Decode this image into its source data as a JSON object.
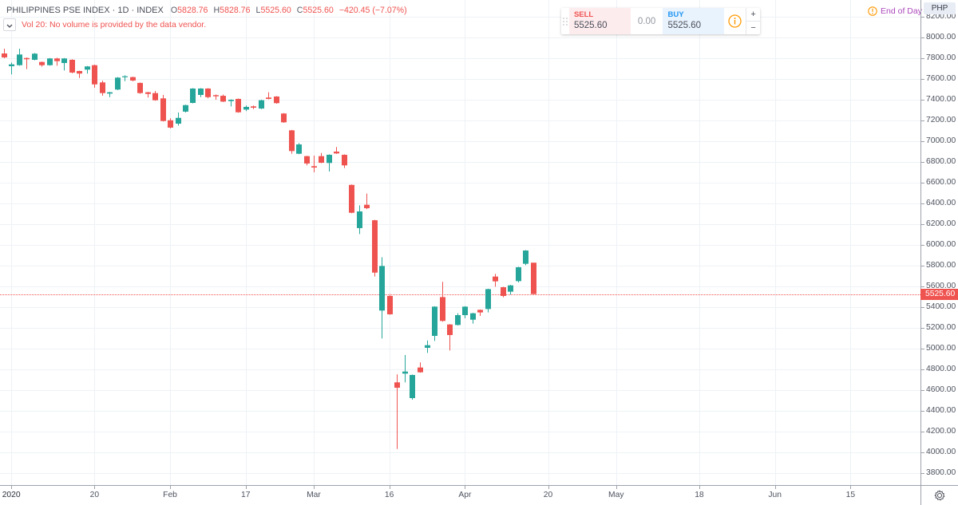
{
  "legend": {
    "symbol_title": "PHILIPPINES PSE INDEX · 1D · INDEX",
    "open_label": "O",
    "open": "5828.76",
    "high_label": "H",
    "high": "5828.76",
    "low_label": "L",
    "low": "5525.60",
    "close_label": "C",
    "close": "5525.60",
    "change": "−420.45 (−7.07%)"
  },
  "volume_indicator": {
    "collapse_icon": "chevron-down-icon",
    "notice": "Vol 20: No volume is provided by the data vendor."
  },
  "trade_widget": {
    "sell_label": "SELL",
    "sell_price": "5525.60",
    "spread": "0.00",
    "buy_label": "BUY",
    "buy_price": "5525.60",
    "info_icon": "info-icon",
    "plus": "+",
    "minus": "−"
  },
  "data_status": {
    "icon": "warning-circle-icon",
    "label": "End of Day"
  },
  "price_axis": {
    "currency": "PHP",
    "last_price_label": "5525.60",
    "tick_labels": [
      "3800.00",
      "4000.00",
      "4200.00",
      "4400.00",
      "4600.00",
      "4800.00",
      "5000.00",
      "5200.00",
      "5400.00",
      "5600.00",
      "5800.00",
      "6000.00",
      "6200.00",
      "6400.00",
      "6600.00",
      "6800.00",
      "7000.00",
      "7200.00",
      "7400.00",
      "7600.00",
      "7800.00",
      "8000.00",
      "8200.00"
    ]
  },
  "settings": {
    "icon": "gear-icon"
  },
  "colors": {
    "up": "#26a69a",
    "down": "#ef5350",
    "grid": "#eef2f6",
    "last_price_line": "#ef5350",
    "status_orange": "#ff9800",
    "status_purple": "#ab47bc",
    "buy_blue": "#2196f3",
    "sell_red": "#ef5350"
  },
  "chart_data": {
    "type": "candlestick",
    "title": "PHILIPPINES PSE INDEX · 1D · INDEX",
    "xlabel": "",
    "ylabel": "PHP",
    "ylim": [
      3700,
      8250
    ],
    "yticks": [
      3800,
      4000,
      4200,
      4400,
      4600,
      4800,
      5000,
      5200,
      5400,
      5600,
      5800,
      6000,
      6200,
      6400,
      6600,
      6800,
      7000,
      7200,
      7400,
      7600,
      7800,
      8000,
      8200
    ],
    "grid": true,
    "legend_position": "top-left",
    "last_price": 5525.6,
    "xticks": [
      {
        "label": "2020",
        "index": 1,
        "year": true
      },
      {
        "label": "20",
        "index": 12
      },
      {
        "label": "Feb",
        "index": 22
      },
      {
        "label": "17",
        "index": 32
      },
      {
        "label": "Mar",
        "index": 41
      },
      {
        "label": "16",
        "index": 51
      },
      {
        "label": "Apr",
        "index": 61
      },
      {
        "label": "20",
        "index": 72
      },
      {
        "label": "May",
        "index": 81
      },
      {
        "label": "18",
        "index": 92
      },
      {
        "label": "Jun",
        "index": 102
      },
      {
        "label": "15",
        "index": 112
      }
    ],
    "categories": [
      "2019-12-27",
      "2020-01-02",
      "2020-01-03",
      "2020-01-06",
      "2020-01-07",
      "2020-01-08",
      "2020-01-09",
      "2020-01-10",
      "2020-01-14",
      "2020-01-15",
      "2020-01-16",
      "2020-01-17",
      "2020-01-20",
      "2020-01-21",
      "2020-01-22",
      "2020-01-23",
      "2020-01-24",
      "2020-01-27",
      "2020-01-28",
      "2020-01-29",
      "2020-01-30",
      "2020-01-31",
      "2020-02-03",
      "2020-02-04",
      "2020-02-05",
      "2020-02-06",
      "2020-02-07",
      "2020-02-10",
      "2020-02-11",
      "2020-02-12",
      "2020-02-13",
      "2020-02-14",
      "2020-02-17",
      "2020-02-18",
      "2020-02-19",
      "2020-02-20",
      "2020-02-21",
      "2020-02-24",
      "2020-02-26",
      "2020-02-27",
      "2020-02-28",
      "2020-03-02",
      "2020-03-03",
      "2020-03-04",
      "2020-03-05",
      "2020-03-06",
      "2020-03-09",
      "2020-03-10",
      "2020-03-11",
      "2020-03-12",
      "2020-03-13",
      "2020-03-16",
      "2020-03-19",
      "2020-03-20",
      "2020-03-23",
      "2020-03-24",
      "2020-03-25",
      "2020-03-26",
      "2020-03-27",
      "2020-03-30",
      "2020-03-31",
      "2020-04-01",
      "2020-04-02",
      "2020-04-03",
      "2020-04-06",
      "2020-04-07",
      "2020-04-08",
      "2020-04-13",
      "2020-04-14",
      "2020-04-15",
      "2020-04-16"
    ],
    "series": [
      {
        "name": "open",
        "values": [
          7846,
          7723,
          7733,
          7802,
          7785,
          7764,
          7733,
          7798,
          7754,
          7785,
          7677,
          7690,
          7733,
          7567,
          7459,
          7498,
          7618,
          7618,
          7562,
          7472,
          7464,
          7413,
          7202,
          7169,
          7285,
          7369,
          7446,
          7508,
          7444,
          7438,
          7387,
          7408,
          7305,
          7336,
          7315,
          7421,
          7431,
          7267,
          7105,
          6879,
          6856,
          6759,
          6856,
          6790,
          6900,
          6869,
          6579,
          6162,
          6387,
          6238,
          5367,
          5508,
          4675,
          4759,
          4523,
          4818,
          5008,
          5123,
          5497,
          5233,
          5228,
          5323,
          5279,
          5374,
          5382,
          5695,
          5592,
          5549,
          5651,
          5818,
          5828.76
        ]
      },
      {
        "name": "high",
        "values": [
          7892,
          7759,
          7892,
          7808,
          7850,
          7768,
          7802,
          7805,
          7802,
          7790,
          7680,
          7725,
          7738,
          7585,
          7476,
          7618,
          7636,
          7622,
          7566,
          7476,
          7485,
          7446,
          7221,
          7277,
          7352,
          7512,
          7512,
          7512,
          7450,
          7450,
          7404,
          7412,
          7344,
          7344,
          7400,
          7472,
          7435,
          7271,
          7109,
          6982,
          6860,
          6862,
          6887,
          6873,
          6944,
          6873,
          6583,
          6382,
          6495,
          6242,
          5882,
          5528,
          4752,
          4938,
          4750,
          4867,
          5079,
          5409,
          5644,
          5237,
          5341,
          5409,
          5345,
          5378,
          5578,
          5721,
          5596,
          5614,
          5789,
          5950,
          5828.76
        ]
      },
      {
        "name": "low",
        "values": [
          7800,
          7644,
          7728,
          7695,
          7780,
          7718,
          7728,
          7728,
          7682,
          7655,
          7610,
          7652,
          7515,
          7438,
          7425,
          7492,
          7579,
          7578,
          7458,
          7421,
          7390,
          7190,
          7123,
          7151,
          7277,
          7365,
          7425,
          7413,
          7400,
          7378,
          7336,
          7275,
          7290,
          7310,
          7310,
          7404,
          7362,
          7178,
          6879,
          6875,
          6767,
          6700,
          6788,
          6708,
          6878,
          6741,
          6306,
          6105,
          6345,
          5695,
          5098,
          5327,
          4033,
          4675,
          4508,
          4768,
          4959,
          5074,
          5260,
          4982,
          5224,
          5292,
          5241,
          5315,
          5349,
          5597,
          5495,
          5521,
          5638,
          5805,
          5525.6
        ]
      },
      {
        "name": "close",
        "values": [
          7808,
          7741,
          7836,
          7790,
          7844,
          7733,
          7798,
          7772,
          7798,
          7662,
          7652,
          7721,
          7548,
          7464,
          7472,
          7613,
          7626,
          7585,
          7464,
          7456,
          7395,
          7195,
          7131,
          7225,
          7348,
          7508,
          7508,
          7425,
          7433,
          7382,
          7400,
          7279,
          7331,
          7323,
          7395,
          7408,
          7367,
          7182,
          6905,
          6969,
          6785,
          6746,
          6792,
          6869,
          6882,
          6767,
          6310,
          6323,
          6354,
          5733,
          5797,
          5331,
          4623,
          4779,
          4746,
          4772,
          5033,
          5405,
          5267,
          5131,
          5323,
          5405,
          5341,
          5349,
          5574,
          5649,
          5508,
          5610,
          5785,
          5946.05,
          5525.6
        ]
      }
    ]
  }
}
